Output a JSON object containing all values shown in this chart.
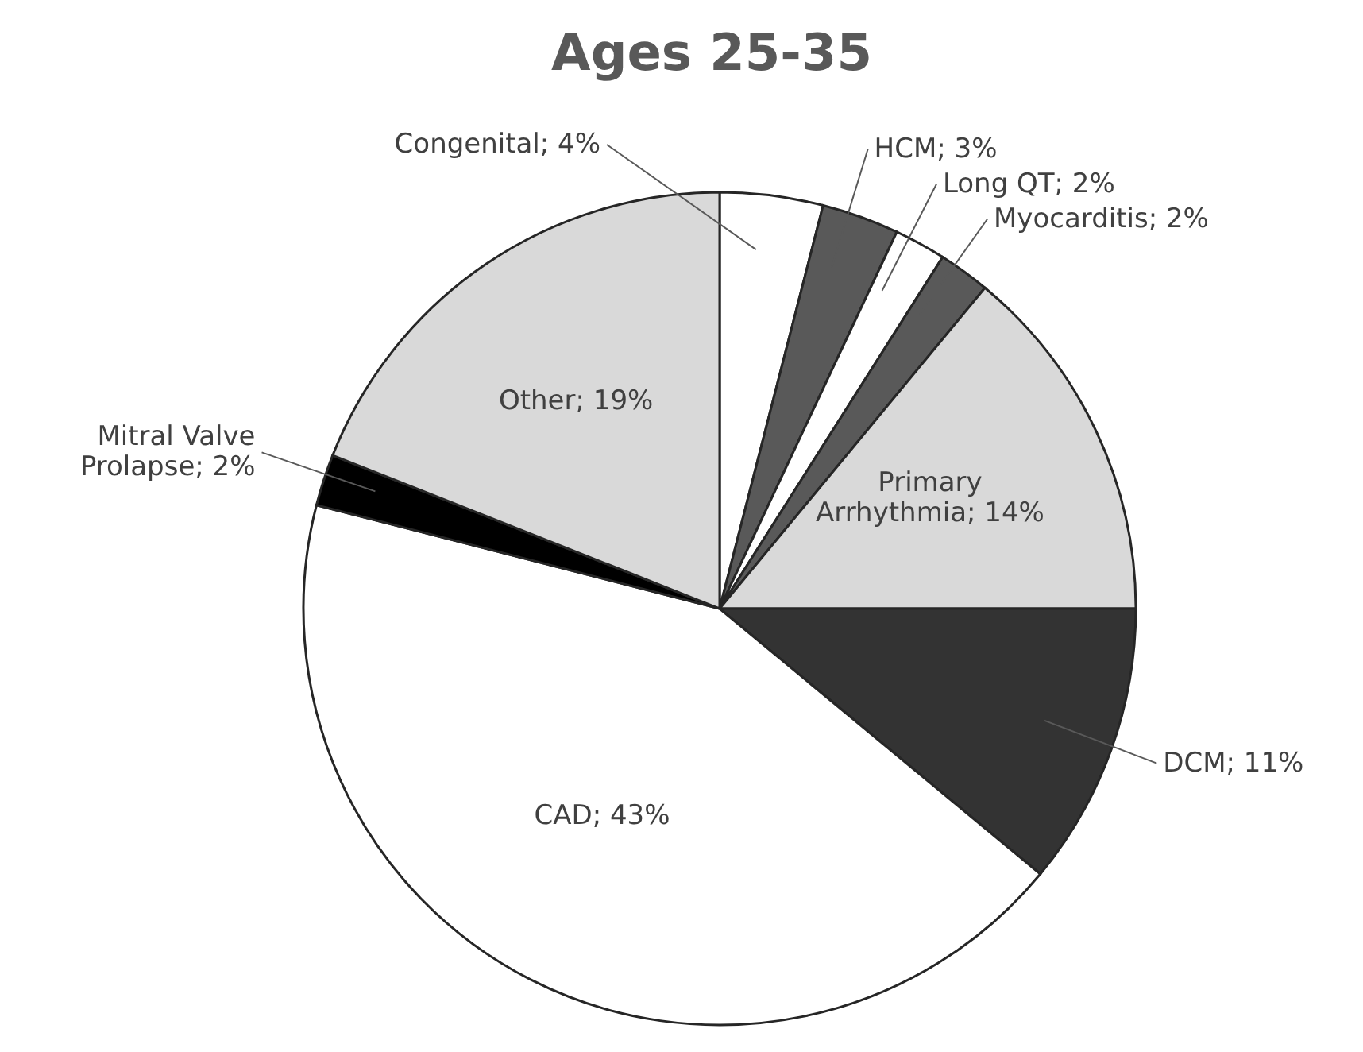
{
  "chart_data": {
    "type": "pie",
    "title": "Ages 25-35",
    "categories": [
      "Congenital",
      "HCM",
      "Long QT",
      "Myocarditis",
      "Primary Arrhythmia",
      "DCM",
      "CAD",
      "Mitral Valve Prolapse",
      "Other"
    ],
    "values": [
      4,
      3,
      2,
      2,
      14,
      11,
      43,
      2,
      19
    ],
    "colors": [
      "#ffffff",
      "#595959",
      "#ffffff",
      "#595959",
      "#d9d9d9",
      "#333333",
      "#ffffff",
      "#000000",
      "#d9d9d9"
    ],
    "value_labels": [
      "4%",
      "3%",
      "2%",
      "2%",
      "14%",
      "11%",
      "43%",
      "2%",
      "19%"
    ]
  }
}
